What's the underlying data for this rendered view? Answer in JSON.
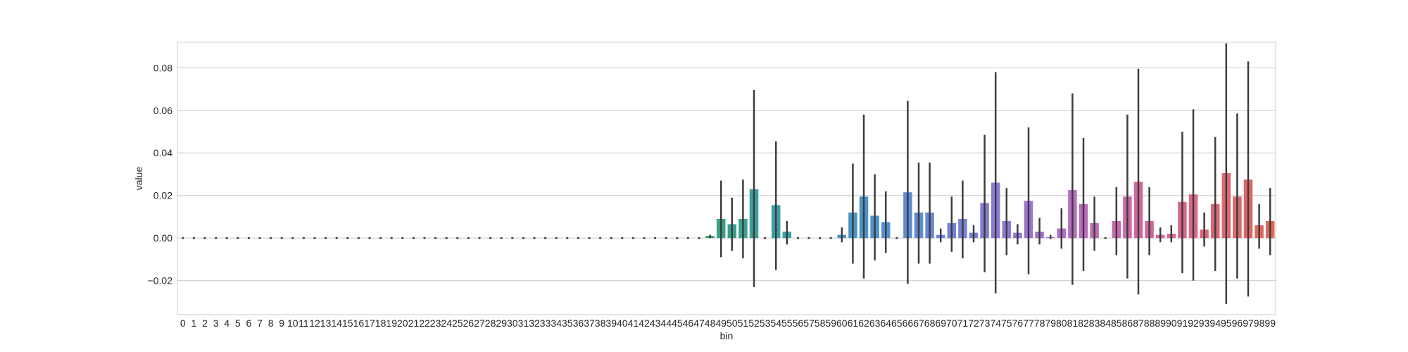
{
  "chart_data": {
    "type": "bar",
    "xlabel": "bin",
    "ylabel": "value",
    "ylim": [
      -0.036,
      0.092
    ],
    "yticks": [
      -0.02,
      0.0,
      0.02,
      0.04,
      0.06,
      0.08
    ],
    "ytick_labels": [
      "−0.02",
      "0.00",
      "0.02",
      "0.04",
      "0.06",
      "0.08"
    ],
    "grid": true,
    "categories": [
      "0",
      "1",
      "2",
      "3",
      "4",
      "5",
      "6",
      "7",
      "8",
      "9",
      "10",
      "11",
      "12",
      "13",
      "14",
      "15",
      "16",
      "17",
      "18",
      "19",
      "20",
      "21",
      "22",
      "23",
      "24",
      "25",
      "26",
      "27",
      "28",
      "29",
      "30",
      "31",
      "32",
      "33",
      "34",
      "35",
      "36",
      "37",
      "38",
      "39",
      "40",
      "41",
      "42",
      "43",
      "44",
      "45",
      "46",
      "47",
      "48",
      "49",
      "50",
      "51",
      "52",
      "53",
      "54",
      "55",
      "56",
      "57",
      "58",
      "59",
      "60",
      "61",
      "62",
      "63",
      "64",
      "65",
      "66",
      "67",
      "68",
      "69",
      "70",
      "71",
      "72",
      "73",
      "74",
      "75",
      "76",
      "77",
      "78",
      "79",
      "80",
      "81",
      "82",
      "83",
      "84",
      "85",
      "86",
      "87",
      "88",
      "89",
      "90",
      "91",
      "92",
      "93",
      "94",
      "95",
      "96",
      "97",
      "98",
      "99"
    ],
    "values": [
      0,
      0,
      0,
      0,
      0,
      0,
      0,
      0,
      0,
      0,
      0,
      0,
      0,
      0,
      0,
      0,
      0,
      0,
      0,
      0,
      0,
      0,
      0,
      0,
      0,
      0,
      0,
      0,
      0,
      0,
      0,
      0,
      0,
      0,
      0,
      0,
      0,
      0,
      0,
      0,
      0,
      0,
      0,
      0,
      0,
      0,
      0,
      0,
      0.001,
      0.009,
      0.0065,
      0.009,
      0.023,
      0,
      0.0155,
      0.003,
      0,
      0,
      0,
      0,
      0.0015,
      0.012,
      0.0195,
      0.0105,
      0.0075,
      0,
      0.0215,
      0.012,
      0.012,
      0.0015,
      0.007,
      0.009,
      0.0025,
      0.0165,
      0.026,
      0.008,
      0.0025,
      0.0175,
      0.003,
      0.0005,
      0.0045,
      0.0225,
      0.016,
      0.007,
      0,
      0.008,
      0.0195,
      0.0265,
      0.008,
      0.0015,
      0.002,
      0.017,
      0.0205,
      0.004,
      0.016,
      0.0305,
      0.0195,
      0.0275,
      0.006,
      0.008
    ],
    "error_low": [
      0,
      0,
      0,
      0,
      0,
      0,
      0,
      0,
      0,
      0,
      0,
      0,
      0,
      0,
      0,
      0,
      0,
      0,
      0,
      0,
      0,
      0,
      0,
      0,
      0,
      0,
      0,
      0,
      0,
      0,
      0,
      0,
      0,
      0,
      0,
      0,
      0,
      0,
      0,
      0,
      0,
      0,
      0,
      0,
      0,
      0,
      0,
      0,
      0,
      -0.009,
      -0.006,
      -0.0095,
      -0.023,
      0,
      -0.015,
      -0.003,
      0,
      0,
      0,
      0,
      -0.002,
      -0.012,
      -0.019,
      -0.0105,
      -0.007,
      0,
      -0.0215,
      -0.012,
      -0.012,
      -0.002,
      -0.0065,
      -0.0095,
      -0.002,
      -0.016,
      -0.026,
      -0.008,
      -0.003,
      -0.017,
      -0.003,
      -0.0005,
      -0.005,
      -0.022,
      -0.0155,
      -0.006,
      0,
      -0.008,
      -0.019,
      -0.0265,
      -0.008,
      -0.002,
      -0.002,
      -0.0165,
      -0.02,
      -0.004,
      -0.0155,
      -0.031,
      -0.019,
      -0.0275,
      -0.005,
      -0.008
    ],
    "error_high": [
      0,
      0,
      0,
      0,
      0,
      0,
      0,
      0,
      0,
      0,
      0,
      0,
      0,
      0,
      0,
      0,
      0,
      0,
      0,
      0,
      0,
      0,
      0,
      0,
      0,
      0,
      0,
      0,
      0,
      0,
      0,
      0,
      0,
      0,
      0,
      0,
      0,
      0,
      0,
      0,
      0,
      0,
      0,
      0,
      0,
      0,
      0,
      0,
      0.0015,
      0.027,
      0.019,
      0.0275,
      0.0695,
      0,
      0.0455,
      0.008,
      0,
      0,
      0,
      0,
      0.005,
      0.035,
      0.058,
      0.03,
      0.022,
      0,
      0.0645,
      0.0355,
      0.0355,
      0.0045,
      0.0195,
      0.027,
      0.006,
      0.0485,
      0.078,
      0.0235,
      0.0065,
      0.052,
      0.0095,
      0.0015,
      0.014,
      0.068,
      0.047,
      0.0195,
      0,
      0.024,
      0.058,
      0.0795,
      0.024,
      0.005,
      0.006,
      0.05,
      0.0605,
      0.012,
      0.0475,
      0.0915,
      0.0585,
      0.083,
      0.016,
      0.0235
    ],
    "colors": [
      "#3a923a",
      "#3a923b",
      "#3a923c",
      "#3a923d",
      "#3a923e",
      "#3a923f",
      "#3a9240",
      "#3a9241",
      "#3a9242",
      "#3a9243",
      "#3a9244",
      "#3a9245",
      "#3a9246",
      "#3a9247",
      "#3a9248",
      "#3a9249",
      "#3a924a",
      "#3a924b",
      "#3a924c",
      "#3a924d",
      "#3a924e",
      "#3a924f",
      "#3a9250",
      "#3a9251",
      "#3a9252",
      "#3a9253",
      "#3a9254",
      "#3a9255",
      "#3a9256",
      "#3a9257",
      "#3a9258",
      "#3a9259",
      "#3a925a",
      "#3a925b",
      "#3a925c",
      "#3a925d",
      "#3a925e",
      "#3a925f",
      "#3a9260",
      "#3a9261",
      "#3a9262",
      "#3a9263",
      "#3a9264",
      "#3a9265",
      "#3a9266",
      "#3a9267",
      "#3a9268",
      "#3a9269",
      "#3a9f6a",
      "#3aa085",
      "#3aa08c",
      "#3aa092",
      "#3aa098",
      "#3a9f9e",
      "#3a9ea3",
      "#3b9da9",
      "#3c9cae",
      "#3e9bb3",
      "#409ab7",
      "#4298bb",
      "#4597bf",
      "#4895c3",
      "#4b93c7",
      "#4f92ca",
      "#5390cd",
      "#578ecf",
      "#5c8cd1",
      "#618ad3",
      "#6688d4",
      "#6b86d5",
      "#7183d6",
      "#7781d6",
      "#7d7fd6",
      "#837cd6",
      "#8a7ad5",
      "#9078d3",
      "#9676d1",
      "#9c74cf",
      "#a272cc",
      "#a871c9",
      "#ae6fc5",
      "#b46ec1",
      "#b96dbc",
      "#be6cb7",
      "#c26bb2",
      "#c76aac",
      "#cb69a6",
      "#cf68a0",
      "#d2689a",
      "#d56894",
      "#d7678e",
      "#d96788",
      "#db6782",
      "#dc677c",
      "#dd6776",
      "#de6770",
      "#de676b",
      "#de6766",
      "#de6861",
      "#dd685c"
    ]
  }
}
